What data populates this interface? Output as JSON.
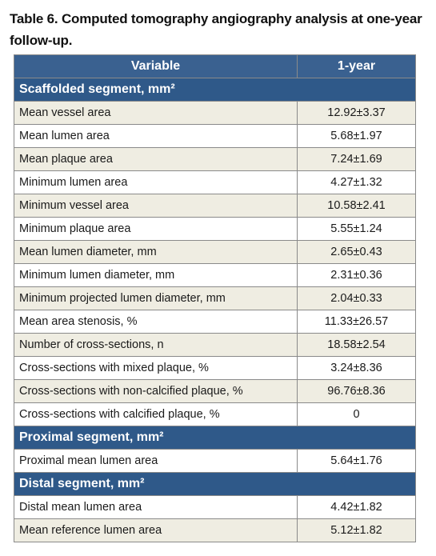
{
  "caption": {
    "line1": "Table 6. Computed tomography angiography analysis at one-year",
    "line2": "follow-up."
  },
  "table": {
    "headers": [
      "Variable",
      "1-year"
    ],
    "sections": [
      {
        "title": "Scaffolded segment, mm²",
        "rows": [
          {
            "variable": "Mean vessel area",
            "value": "12.92±3.37"
          },
          {
            "variable": "Mean lumen area",
            "value": "5.68±1.97"
          },
          {
            "variable": "Mean plaque area",
            "value": "7.24±1.69"
          },
          {
            "variable": "Minimum lumen area",
            "value": "4.27±1.32"
          },
          {
            "variable": "Minimum vessel area",
            "value": "10.58±2.41"
          },
          {
            "variable": "Minimum plaque area",
            "value": "5.55±1.24"
          },
          {
            "variable": "Mean lumen diameter, mm",
            "value": "2.65±0.43"
          },
          {
            "variable": "Minimum lumen diameter, mm",
            "value": "2.31±0.36"
          },
          {
            "variable": "Minimum projected lumen diameter, mm",
            "value": "2.04±0.33"
          },
          {
            "variable": "Mean area stenosis, %",
            "value": "11.33±26.57"
          },
          {
            "variable": "Number of cross-sections, n",
            "value": "18.58±2.54"
          },
          {
            "variable": "Cross-sections with mixed plaque, %",
            "value": "3.24±8.36"
          },
          {
            "variable": "Cross-sections with non-calcified plaque, %",
            "value": "96.76±8.36"
          },
          {
            "variable": "Cross-sections with calcified plaque, %",
            "value": "0"
          }
        ]
      },
      {
        "title": "Proximal segment, mm²",
        "rows": [
          {
            "variable": "Proximal mean lumen area",
            "value": "5.64±1.76"
          }
        ]
      },
      {
        "title": "Distal segment, mm²",
        "rows": [
          {
            "variable": "Distal mean lumen area",
            "value": "4.42±1.82"
          },
          {
            "variable": "Mean reference lumen area",
            "value": "5.12±1.82"
          }
        ]
      }
    ]
  },
  "colors": {
    "header_bg": "#3a6190",
    "section_bg": "#2f5989",
    "shaded_row_bg": "#efede2",
    "plain_row_bg": "#ffffff",
    "border": "#8a8a8a"
  }
}
